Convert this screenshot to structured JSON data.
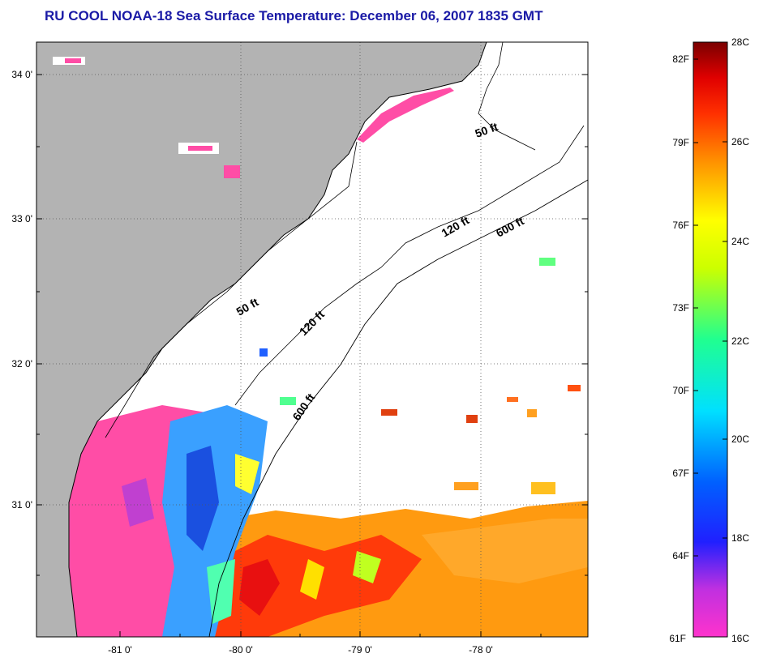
{
  "title": "RU COOL  NOAA-18  Sea Surface Temperature:  December 06, 2007 1835 GMT",
  "axes": {
    "lat_labels": [
      "34 0'",
      "33 0'",
      "32 0'",
      "31 0'"
    ],
    "lon_labels": [
      "-81 0'",
      "-80 0'",
      "-79 0'",
      "-78 0'"
    ]
  },
  "isobaths": {
    "shelf_50": "50 ft",
    "shelf_120": "120 ft",
    "shelf_600": "600 ft"
  },
  "colorbar": {
    "fahrenheit": [
      "82F",
      "79F",
      "76F",
      "73F",
      "70F",
      "67F",
      "64F",
      "61F"
    ],
    "celsius": [
      "28C",
      "26C",
      "24C",
      "22C",
      "20C",
      "18C",
      "16C"
    ],
    "colors": [
      "#7a0000",
      "#ff0000",
      "#ff6a00",
      "#ffb000",
      "#ffff00",
      "#7fff00",
      "#00ffff",
      "#0088ff",
      "#0000cc",
      "#8a2be2",
      "#ff33cc"
    ]
  },
  "colors": {
    "land": "#b3b3b3",
    "cloud": "#ffffff",
    "pink": "#ff4da6",
    "title": "#1a1aa6"
  }
}
